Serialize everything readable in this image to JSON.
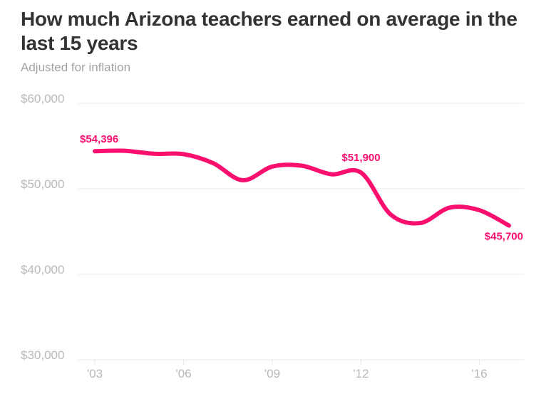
{
  "title": "How much Arizona teachers earned on average in the last 15 years",
  "subtitle": "Adjusted for inflation",
  "colors": {
    "line": "#fa0f6e",
    "grid": "#e8e8e8",
    "tick": "#b8b8b8",
    "title": "#333333",
    "subtitle": "#a3a3a3"
  },
  "chart_data": {
    "type": "line",
    "title": "How much Arizona teachers earned on average in the last 15 years",
    "subtitle": "Adjusted for inflation",
    "xlabel": "",
    "ylabel": "",
    "x": [
      2003,
      2004,
      2005,
      2006,
      2007,
      2008,
      2009,
      2010,
      2011,
      2012,
      2013,
      2014,
      2015,
      2016,
      2017
    ],
    "series": [
      {
        "values": [
          54396,
          54450,
          54100,
          54050,
          53000,
          51000,
          52600,
          52700,
          51700,
          51900,
          47000,
          46000,
          47800,
          47500,
          45700
        ]
      }
    ],
    "xlim": [
      2003,
      2017
    ],
    "ylim": [
      30000,
      60000
    ],
    "x_ticks": [
      2003,
      2006,
      2009,
      2012,
      2016
    ],
    "x_tick_labels": [
      "'03",
      "'06",
      "'09",
      "'12",
      "'16"
    ],
    "y_ticks": [
      30000,
      40000,
      50000,
      60000
    ],
    "y_tick_labels": [
      "$30,000",
      "$40,000",
      "$50,000",
      "$60,000"
    ],
    "grid": true,
    "annotations": [
      {
        "x": 2003,
        "value": 54396,
        "text": "$54,396"
      },
      {
        "x": 2012,
        "value": 51900,
        "text": "$51,900"
      },
      {
        "x": 2017,
        "value": 45700,
        "text": "$45,700"
      }
    ]
  }
}
